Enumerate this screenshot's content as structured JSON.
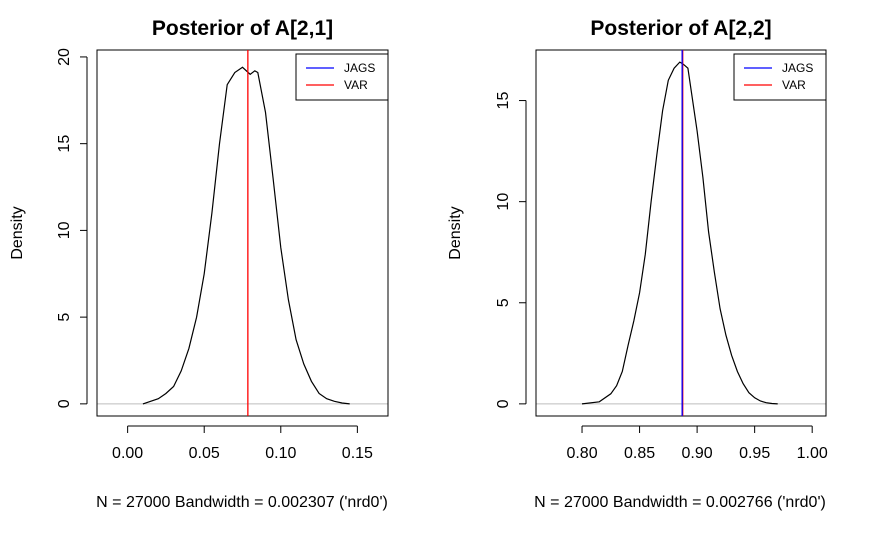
{
  "chart_data": [
    {
      "type": "line",
      "title": "Posterior of A[2,1]",
      "xlabel": "N = 27000   Bandwidth = 0.002307 ('nrd0')",
      "ylabel": "Density",
      "xlim": [
        -0.02,
        0.17
      ],
      "ylim": [
        -0.7,
        20.4
      ],
      "xticks": [
        0.0,
        0.05,
        0.1,
        0.15
      ],
      "xtick_labels": [
        "0.00",
        "0.05",
        "0.10",
        "0.15"
      ],
      "yticks": [
        0,
        5,
        10,
        15,
        20
      ],
      "ytick_labels": [
        "0",
        "5",
        "10",
        "15",
        "20"
      ],
      "legend": {
        "position": "top-right",
        "entries": [
          {
            "label": "JAGS",
            "color": "#0000ff"
          },
          {
            "label": "VAR",
            "color": "#ff0000"
          }
        ]
      },
      "series": [
        {
          "name": "JAGS",
          "color": "#000000",
          "x": [
            0.01,
            0.02,
            0.025,
            0.03,
            0.035,
            0.04,
            0.045,
            0.05,
            0.055,
            0.06,
            0.065,
            0.07,
            0.075,
            0.08,
            0.083,
            0.085,
            0.09,
            0.095,
            0.1,
            0.105,
            0.11,
            0.115,
            0.12,
            0.125,
            0.13,
            0.135,
            0.14,
            0.145
          ],
          "y": [
            0.0,
            0.3,
            0.6,
            1.0,
            1.9,
            3.2,
            5.0,
            7.5,
            11.0,
            15.0,
            18.4,
            19.1,
            19.4,
            19.0,
            19.2,
            19.1,
            16.8,
            13.0,
            9.0,
            6.0,
            3.7,
            2.3,
            1.3,
            0.6,
            0.3,
            0.15,
            0.05,
            0.0
          ]
        }
      ],
      "vlines": [
        {
          "name": "VAR",
          "x": 0.0785,
          "color": "#ff0000"
        }
      ],
      "grid": false
    },
    {
      "type": "line",
      "title": "Posterior of A[2,2]",
      "xlabel": "N = 27000   Bandwidth = 0.002766 ('nrd0')",
      "ylabel": "Density",
      "xlim": [
        0.76,
        1.012
      ],
      "ylim": [
        -0.6,
        17.5
      ],
      "xticks": [
        0.8,
        0.85,
        0.9,
        0.95,
        1.0
      ],
      "xtick_labels": [
        "0.80",
        "0.85",
        "0.90",
        "0.95",
        "1.00"
      ],
      "yticks": [
        0,
        5,
        10,
        15
      ],
      "ytick_labels": [
        "0",
        "5",
        "10",
        "15"
      ],
      "legend": {
        "position": "top-right",
        "entries": [
          {
            "label": "JAGS",
            "color": "#0000ff"
          },
          {
            "label": "VAR",
            "color": "#ff0000"
          }
        ]
      },
      "series": [
        {
          "name": "JAGS",
          "color": "#000000",
          "x": [
            0.8,
            0.815,
            0.825,
            0.83,
            0.835,
            0.84,
            0.845,
            0.85,
            0.855,
            0.86,
            0.865,
            0.87,
            0.875,
            0.88,
            0.885,
            0.888,
            0.892,
            0.9,
            0.905,
            0.91,
            0.915,
            0.92,
            0.925,
            0.93,
            0.935,
            0.94,
            0.945,
            0.95,
            0.955,
            0.96,
            0.965,
            0.97
          ],
          "y": [
            0.0,
            0.1,
            0.5,
            0.9,
            1.6,
            2.9,
            4.1,
            5.5,
            7.4,
            10.0,
            12.3,
            14.5,
            16.0,
            16.6,
            16.9,
            16.8,
            16.6,
            13.5,
            11.2,
            8.5,
            6.5,
            4.7,
            3.4,
            2.4,
            1.6,
            1.0,
            0.55,
            0.3,
            0.14,
            0.06,
            0.02,
            0.0
          ]
        }
      ],
      "vlines": [
        {
          "name": "VAR",
          "x": 0.8875,
          "color": "#ff0000"
        },
        {
          "name": "JAGS",
          "x": 0.887,
          "color": "#0000ff"
        }
      ],
      "grid": false
    }
  ]
}
